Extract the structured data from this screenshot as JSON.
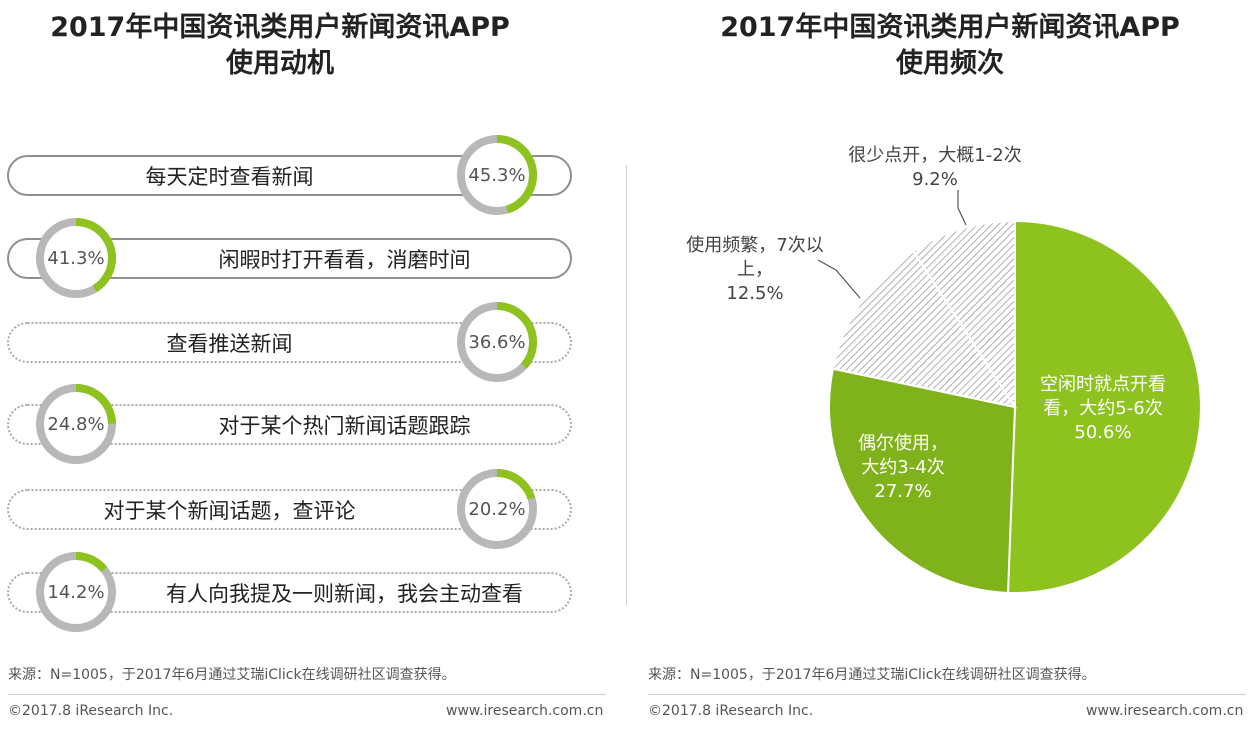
{
  "left_title": {
    "line1": "2017年中国资讯类用户新闻资讯APP",
    "line2": "使用动机"
  },
  "right_title": {
    "line1": "2017年中国资讯类用户新闻资讯APP",
    "line2": "使用频次"
  },
  "footer": {
    "source": "来源：N=1005，于2017年6月通过艾瑞iClick在线调研社区调查获得。",
    "copyright": "©2017.8 iResearch Inc.",
    "website": "www.iresearch.com.cn"
  },
  "colors": {
    "green": "#8dc21f",
    "ring_grey": "#b8b8b8",
    "pie_grey_hatch": "#9a9a9a"
  },
  "chart_data": [
    {
      "type": "bar",
      "title": "2017年中国资讯类用户新闻资讯APP使用动机",
      "categories": [
        "每天定时查看新闻",
        "闲暇时打开看看，消磨时间",
        "查看推送新闻",
        "对于某个热门新闻话题跟踪",
        "对于某个新闻话题，查评论",
        "有人向我提及一则新闻，我会主动查看"
      ],
      "values": [
        45.3,
        41.3,
        36.6,
        24.8,
        20.2,
        14.2
      ],
      "value_labels": [
        "45.3%",
        "41.3%",
        "36.6%",
        "24.8%",
        "20.2%",
        "14.2%"
      ],
      "unit": "%",
      "ylim": [
        0,
        100
      ]
    },
    {
      "type": "pie",
      "title": "2017年中国资讯类用户新闻资讯APP使用频次",
      "labels": [
        "空闲时就点开看看，大约5-6次",
        "偶尔使用，大约3-4次",
        "使用频繁，7次以上",
        "很少点开，大概1-2次"
      ],
      "values": [
        50.6,
        27.7,
        12.5,
        9.2
      ],
      "label_lines": [
        [
          "空闲时就点开看",
          "看，大约5-6次",
          "50.6%"
        ],
        [
          "偶尔使用，",
          "大约3-4次",
          "27.7%"
        ],
        [
          "使用频繁，7次以",
          "上，",
          "12.5%"
        ],
        [
          "很少点开，大概1-2次",
          "9.2%"
        ]
      ]
    }
  ]
}
